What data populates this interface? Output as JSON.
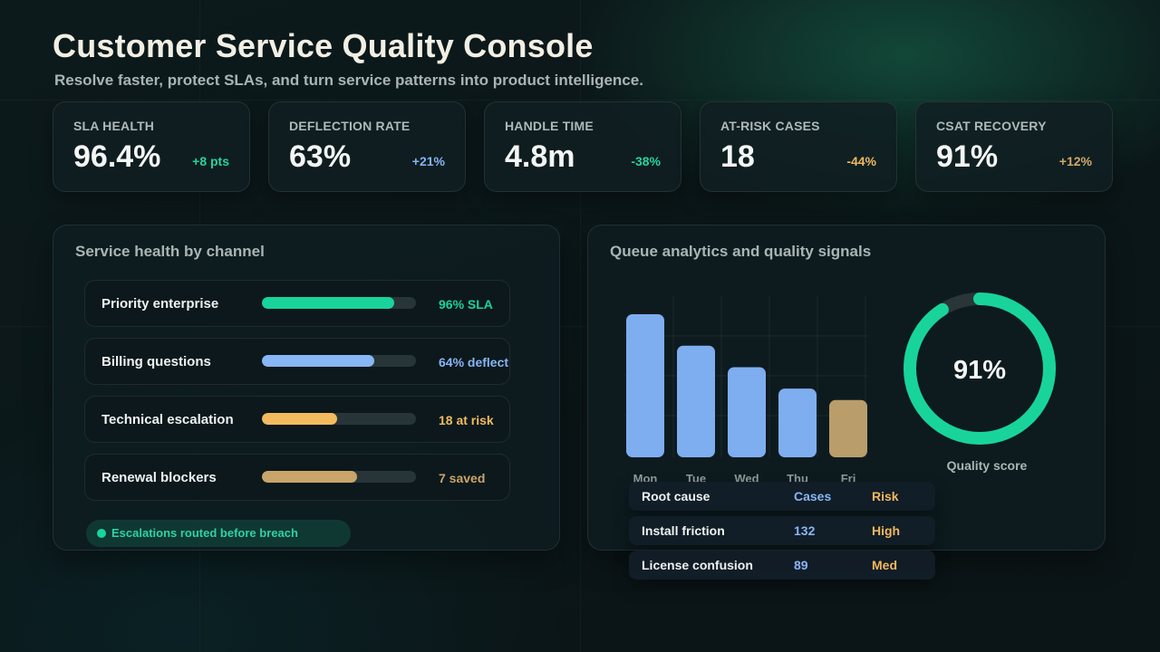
{
  "header": {
    "title": "Customer Service Quality Console",
    "subtitle": "Resolve faster, protect SLAs, and turn service patterns into product intelligence."
  },
  "kpis": [
    {
      "label": "SLA HEALTH",
      "value": "96.4%",
      "delta": "+8 pts",
      "delta_color": "#28d39a"
    },
    {
      "label": "DEFLECTION RATE",
      "value": "63%",
      "delta": "+21%",
      "delta_color": "#86b4f3"
    },
    {
      "label": "HANDLE TIME",
      "value": "4.8m",
      "delta": "-38%",
      "delta_color": "#28d39a"
    },
    {
      "label": "AT-RISK CASES",
      "value": "18",
      "delta": "-44%",
      "delta_color": "#f0b85e"
    },
    {
      "label": "CSAT RECOVERY",
      "value": "91%",
      "delta": "+12%",
      "delta_color": "#cfa96a"
    }
  ],
  "channel_panel": {
    "title": "Service health by channel",
    "rows": [
      {
        "label": "Priority enterprise",
        "metric": "96% SLA",
        "fill": 0.86,
        "color": "#18d49b"
      },
      {
        "label": "Billing questions",
        "metric": "64% deflect",
        "fill": 0.73,
        "color": "#88b6f6"
      },
      {
        "label": "Technical escalation",
        "metric": "18 at risk",
        "fill": 0.49,
        "color": "#f2bb5f"
      },
      {
        "label": "Renewal blockers",
        "metric": "7 saved",
        "fill": 0.62,
        "color": "#c9a56a"
      }
    ],
    "pill_text": "Escalations routed before breach",
    "pill_color": "#18d49b"
  },
  "queue_panel": {
    "title": "Queue analytics and quality signals",
    "quality_label": "Quality score"
  },
  "chart_data": [
    {
      "type": "bar",
      "categories": [
        "Mon",
        "Tue",
        "Wed",
        "Thu",
        "Fri"
      ],
      "values": [
        100,
        78,
        63,
        48,
        40
      ],
      "ylim": [
        0,
        100
      ],
      "grid": true,
      "colors": [
        "#7eaef0",
        "#7eaef0",
        "#7eaef0",
        "#7eaef0",
        "#b99d6b"
      ]
    },
    {
      "type": "pie",
      "values": [
        91,
        9
      ],
      "center_label": "91%",
      "colors": [
        "#18d49b",
        "#2a3538"
      ]
    }
  ],
  "root_cause_table": {
    "headers": [
      "Root cause",
      "Cases",
      "Risk"
    ],
    "header_colors": [
      "#eef2f0",
      "#88b6f6",
      "#f0b85e"
    ],
    "rows": [
      {
        "cause": "Install friction",
        "cases": "132",
        "risk": "High"
      },
      {
        "cause": "License confusion",
        "cases": "89",
        "risk": "Med"
      }
    ]
  }
}
